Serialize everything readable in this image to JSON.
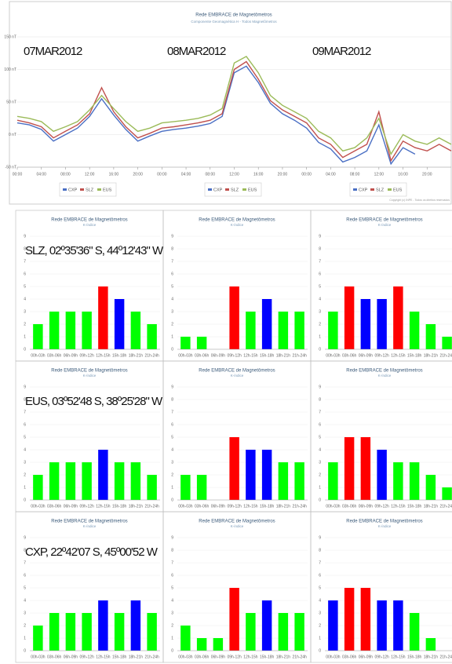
{
  "chart_data": [
    {
      "type": "line",
      "title": "Rede EMBRACE de Magnetômetros",
      "subtitle": "Componente Geomagnética H - Todos Magnetômetros",
      "annotations": [
        "07MAR2012",
        "08MAR2012",
        "09MAR2012"
      ],
      "credits": "Copyright (c) INPE - Todos os direitos reservados",
      "x": [
        0,
        2,
        4,
        6,
        8,
        10,
        12,
        14,
        16,
        18,
        20,
        22,
        24,
        26,
        28,
        30,
        32,
        34,
        36,
        38,
        40,
        42,
        44,
        46,
        48,
        50,
        52,
        54,
        56,
        58,
        60,
        62,
        64,
        66,
        68,
        70,
        72
      ],
      "xlim": [
        0,
        72
      ],
      "xticks": [
        {
          "value": 0,
          "label": "00:00"
        },
        {
          "value": 4,
          "label": "04:00"
        },
        {
          "value": 8,
          "label": "08:00"
        },
        {
          "value": 12,
          "label": "12:00"
        },
        {
          "value": 16,
          "label": "16:00"
        },
        {
          "value": 20,
          "label": "20:00"
        },
        {
          "value": 24,
          "label": "00:00"
        },
        {
          "value": 28,
          "label": "04:00"
        },
        {
          "value": 32,
          "label": "08:00"
        },
        {
          "value": 36,
          "label": "12:00"
        },
        {
          "value": 40,
          "label": "16:00"
        },
        {
          "value": 44,
          "label": "20:00"
        },
        {
          "value": 48,
          "label": "00:00"
        },
        {
          "value": 52,
          "label": "04:00"
        },
        {
          "value": 56,
          "label": "08:00"
        },
        {
          "value": 60,
          "label": "12:00"
        },
        {
          "value": 64,
          "label": "16:00"
        },
        {
          "value": 68,
          "label": "20:00"
        }
      ],
      "ylim": [
        -50,
        150
      ],
      "yticks": [
        {
          "value": -50,
          "label": "-50 nT"
        },
        {
          "value": 0,
          "label": "0 nT"
        },
        {
          "value": 50,
          "label": "50 nT"
        },
        {
          "value": 100,
          "label": "100 nT"
        },
        {
          "value": 150,
          "label": "150 nT"
        }
      ],
      "series": [
        {
          "name": "CXP",
          "color": "#4a6fc4",
          "values": [
            18,
            15,
            8,
            -10,
            0,
            10,
            28,
            55,
            30,
            8,
            -10,
            -2,
            5,
            8,
            10,
            13,
            17,
            28,
            95,
            105,
            80,
            48,
            32,
            22,
            10,
            -12,
            -22,
            -42,
            -35,
            -25,
            15,
            -45,
            -20,
            -30,
            null,
            null,
            null
          ]
        },
        {
          "name": "SLZ",
          "color": "#c0504d",
          "values": [
            22,
            18,
            12,
            -5,
            5,
            15,
            32,
            72,
            35,
            12,
            -5,
            2,
            10,
            12,
            15,
            18,
            22,
            32,
            100,
            112,
            85,
            52,
            38,
            28,
            18,
            -5,
            -15,
            -35,
            -25,
            -15,
            35,
            -40,
            -10,
            -20,
            -25,
            -15,
            -25
          ]
        },
        {
          "name": "EUS",
          "color": "#9bbb59",
          "values": [
            28,
            25,
            20,
            5,
            12,
            20,
            38,
            60,
            40,
            20,
            5,
            10,
            18,
            20,
            22,
            25,
            30,
            40,
            110,
            120,
            95,
            60,
            45,
            35,
            25,
            5,
            -5,
            -25,
            -20,
            -5,
            25,
            -30,
            0,
            -10,
            -15,
            -5,
            -15
          ]
        }
      ]
    },
    {
      "type": "bar",
      "title": "Rede EMBRACE de Magnetômetros",
      "subtitle": "K-índice",
      "annotation": "SLZ, 02º35'36\" S, 44º12'43\" W",
      "categories": [
        "00h-03h",
        "03h-06h",
        "06h-09h",
        "09h-12h",
        "12h-15h",
        "15h-18h",
        "18h-21h",
        "21h-24h"
      ],
      "values": [
        2,
        3,
        3,
        3,
        5,
        4,
        3,
        2
      ],
      "colors": [
        "#00ff00",
        "#00ff00",
        "#00ff00",
        "#00ff00",
        "#ff0000",
        "#0000ff",
        "#00ff00",
        "#00ff00"
      ],
      "ylim": [
        0,
        9
      ],
      "yticks": [
        0,
        1,
        2,
        3,
        4,
        5,
        6,
        7,
        8,
        9
      ]
    },
    {
      "type": "bar",
      "title": "Rede EMBRACE de Magnetômetros",
      "subtitle": "K-índice",
      "categories": [
        "00h-03h",
        "03h-06h",
        "06h-09h",
        "09h-12h",
        "12h-15h",
        "15h-18h",
        "18h-21h",
        "21h-24h"
      ],
      "values": [
        1,
        1,
        null,
        5,
        3,
        4,
        3,
        3
      ],
      "colors": [
        "#00ff00",
        "#00ff00",
        "#00ff00",
        "#ff0000",
        "#00ff00",
        "#0000ff",
        "#00ff00",
        "#00ff00"
      ],
      "ylim": [
        0,
        9
      ],
      "yticks": [
        0,
        1,
        2,
        3,
        4,
        5,
        6,
        7,
        8,
        9
      ]
    },
    {
      "type": "bar",
      "title": "Rede EMBRACE de Magnetômetros",
      "subtitle": "K-índice",
      "categories": [
        "00h-03h",
        "03h-06h",
        "06h-09h",
        "09h-12h",
        "12h-15h",
        "15h-18h",
        "18h-21h",
        "21h-24h"
      ],
      "values": [
        3,
        5,
        4,
        4,
        5,
        3,
        2,
        1
      ],
      "colors": [
        "#00ff00",
        "#ff0000",
        "#0000ff",
        "#0000ff",
        "#ff0000",
        "#00ff00",
        "#00ff00",
        "#00ff00"
      ],
      "ylim": [
        0,
        9
      ],
      "yticks": [
        0,
        1,
        2,
        3,
        4,
        5,
        6,
        7,
        8,
        9
      ]
    },
    {
      "type": "bar",
      "title": "Rede EMBRACE de Magnetômetros",
      "subtitle": "K-índice",
      "annotation": "EUS, 03º52'48 S, 38º25'28\" W",
      "categories": [
        "00h-03h",
        "03h-06h",
        "06h-09h",
        "09h-12h",
        "12h-15h",
        "15h-18h",
        "18h-21h",
        "21h-24h"
      ],
      "values": [
        2,
        3,
        3,
        3,
        4,
        3,
        3,
        2
      ],
      "colors": [
        "#00ff00",
        "#00ff00",
        "#00ff00",
        "#00ff00",
        "#0000ff",
        "#00ff00",
        "#00ff00",
        "#00ff00"
      ],
      "ylim": [
        0,
        9
      ],
      "yticks": [
        0,
        1,
        2,
        3,
        4,
        5,
        6,
        7,
        8,
        9
      ]
    },
    {
      "type": "bar",
      "title": "Rede EMBRACE de Magnetômetros",
      "subtitle": "K-índice",
      "categories": [
        "00h-03h",
        "03h-06h",
        "06h-09h",
        "09h-12h",
        "12h-15h",
        "15h-18h",
        "18h-21h",
        "21h-24h"
      ],
      "values": [
        2,
        2,
        null,
        5,
        4,
        4,
        3,
        3
      ],
      "colors": [
        "#00ff00",
        "#00ff00",
        "#00ff00",
        "#ff0000",
        "#0000ff",
        "#0000ff",
        "#00ff00",
        "#00ff00"
      ],
      "ylim": [
        0,
        9
      ],
      "yticks": [
        0,
        1,
        2,
        3,
        4,
        5,
        6,
        7,
        8,
        9
      ]
    },
    {
      "type": "bar",
      "title": "Rede EMBRACE de Magnetômetros",
      "subtitle": "K-índice",
      "categories": [
        "00h-03h",
        "03h-06h",
        "06h-09h",
        "09h-12h",
        "12h-15h",
        "15h-18h",
        "18h-21h",
        "21h-24h"
      ],
      "values": [
        3,
        5,
        5,
        4,
        3,
        3,
        2,
        1
      ],
      "colors": [
        "#00ff00",
        "#ff0000",
        "#ff0000",
        "#0000ff",
        "#00ff00",
        "#00ff00",
        "#00ff00",
        "#00ff00"
      ],
      "ylim": [
        0,
        9
      ],
      "yticks": [
        0,
        1,
        2,
        3,
        4,
        5,
        6,
        7,
        8,
        9
      ]
    },
    {
      "type": "bar",
      "title": "Rede EMBRACE de Magnetômetros",
      "subtitle": "K-índice",
      "annotation": "CXP, 22º42'07 S, 45º00'52 W",
      "categories": [
        "00h-03h",
        "03h-06h",
        "06h-09h",
        "09h-12h",
        "12h-15h",
        "15h-18h",
        "18h-21h",
        "21h-24h"
      ],
      "values": [
        2,
        3,
        3,
        3,
        4,
        3,
        4,
        3
      ],
      "colors": [
        "#00ff00",
        "#00ff00",
        "#00ff00",
        "#00ff00",
        "#0000ff",
        "#00ff00",
        "#0000ff",
        "#00ff00"
      ],
      "ylim": [
        0,
        9
      ],
      "yticks": [
        0,
        1,
        2,
        3,
        4,
        5,
        6,
        7,
        8,
        9
      ]
    },
    {
      "type": "bar",
      "title": "Rede EMBRACE de Magnetômetros",
      "subtitle": "K-índice",
      "categories": [
        "00h-03h",
        "03h-06h",
        "06h-09h",
        "09h-12h",
        "12h-15h",
        "15h-18h",
        "18h-21h",
        "21h-24h"
      ],
      "values": [
        2,
        1,
        1,
        5,
        3,
        4,
        3,
        3
      ],
      "colors": [
        "#00ff00",
        "#00ff00",
        "#00ff00",
        "#ff0000",
        "#00ff00",
        "#0000ff",
        "#00ff00",
        "#00ff00"
      ],
      "ylim": [
        0,
        9
      ],
      "yticks": [
        0,
        1,
        2,
        3,
        4,
        5,
        6,
        7,
        8,
        9
      ]
    },
    {
      "type": "bar",
      "title": "Rede EMBRACE de Magnetômetros",
      "subtitle": "K-índice",
      "categories": [
        "00h-03h",
        "03h-06h",
        "06h-09h",
        "09h-12h",
        "12h-15h",
        "15h-18h",
        "18h-21h",
        "21h-24h"
      ],
      "values": [
        4,
        5,
        5,
        4,
        4,
        3,
        1,
        null
      ],
      "colors": [
        "#0000ff",
        "#ff0000",
        "#ff0000",
        "#0000ff",
        "#0000ff",
        "#00ff00",
        "#00ff00",
        "#00ff00"
      ],
      "ylim": [
        0,
        9
      ],
      "yticks": [
        0,
        1,
        2,
        3,
        4,
        5,
        6,
        7,
        8,
        9
      ]
    }
  ]
}
